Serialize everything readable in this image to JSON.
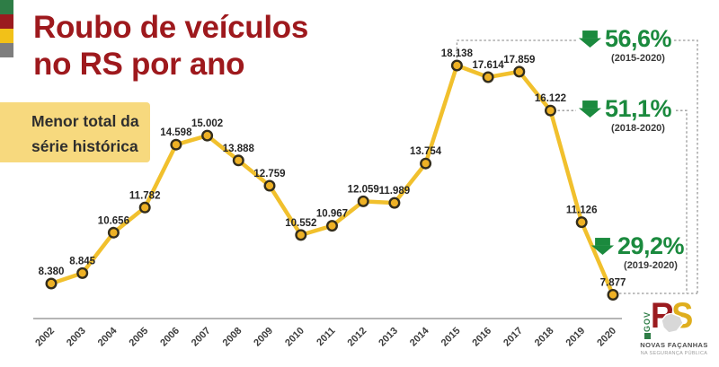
{
  "brand_stripes": [
    "#2e7d46",
    "#9b1b1f",
    "#f2c118",
    "#7e7e7e"
  ],
  "header": {
    "title_line1": "Roubo de veículos",
    "title_line2": "no RS por ano",
    "title_color": "#9e191d"
  },
  "callout": {
    "line1": "Menor total da",
    "line2": "série histórica",
    "bg_color": "#f7d97e"
  },
  "chart_data": {
    "type": "line",
    "title": "Roubo de veículos no RS por ano",
    "x": [
      2002,
      2003,
      2004,
      2005,
      2006,
      2007,
      2008,
      2009,
      2010,
      2011,
      2012,
      2013,
      2014,
      2015,
      2016,
      2017,
      2018,
      2019,
      2020
    ],
    "series": [
      {
        "name": "Roubo de veículos no RS",
        "values": [
          8380,
          8845,
          10656,
          11782,
          14598,
          15002,
          13888,
          12759,
          10552,
          10967,
          12059,
          11989,
          13754,
          18138,
          17614,
          17859,
          16122,
          11126,
          7877
        ]
      }
    ],
    "thousands_separator": ".",
    "grid": false,
    "legend": "none",
    "ylim": [
      7877,
      18138
    ],
    "line_color": "#f1c02d",
    "marker_fill": "#eeb125",
    "marker_stroke": "#332d1c",
    "axis_color": "#b5b5b5",
    "dotted_guide_color": "#999999"
  },
  "annotations": [
    {
      "pct": "56,6%",
      "range": "(2015-2020)",
      "from_year": 2015,
      "to_year": 2020
    },
    {
      "pct": "51,1%",
      "range": "(2018-2020)",
      "from_year": 2018,
      "to_year": 2020
    },
    {
      "pct": "29,2%",
      "range": "(2019-2020)",
      "from_year": 2019,
      "to_year": 2020
    }
  ],
  "annotation_color": "#1b8a3e",
  "logo": {
    "gov": "GOV",
    "rs_r": "R",
    "rs_s": "S",
    "tagline": "NOVAS FAÇANHAS",
    "subtagline": "NA SEGURANÇA PÚBLICA"
  }
}
